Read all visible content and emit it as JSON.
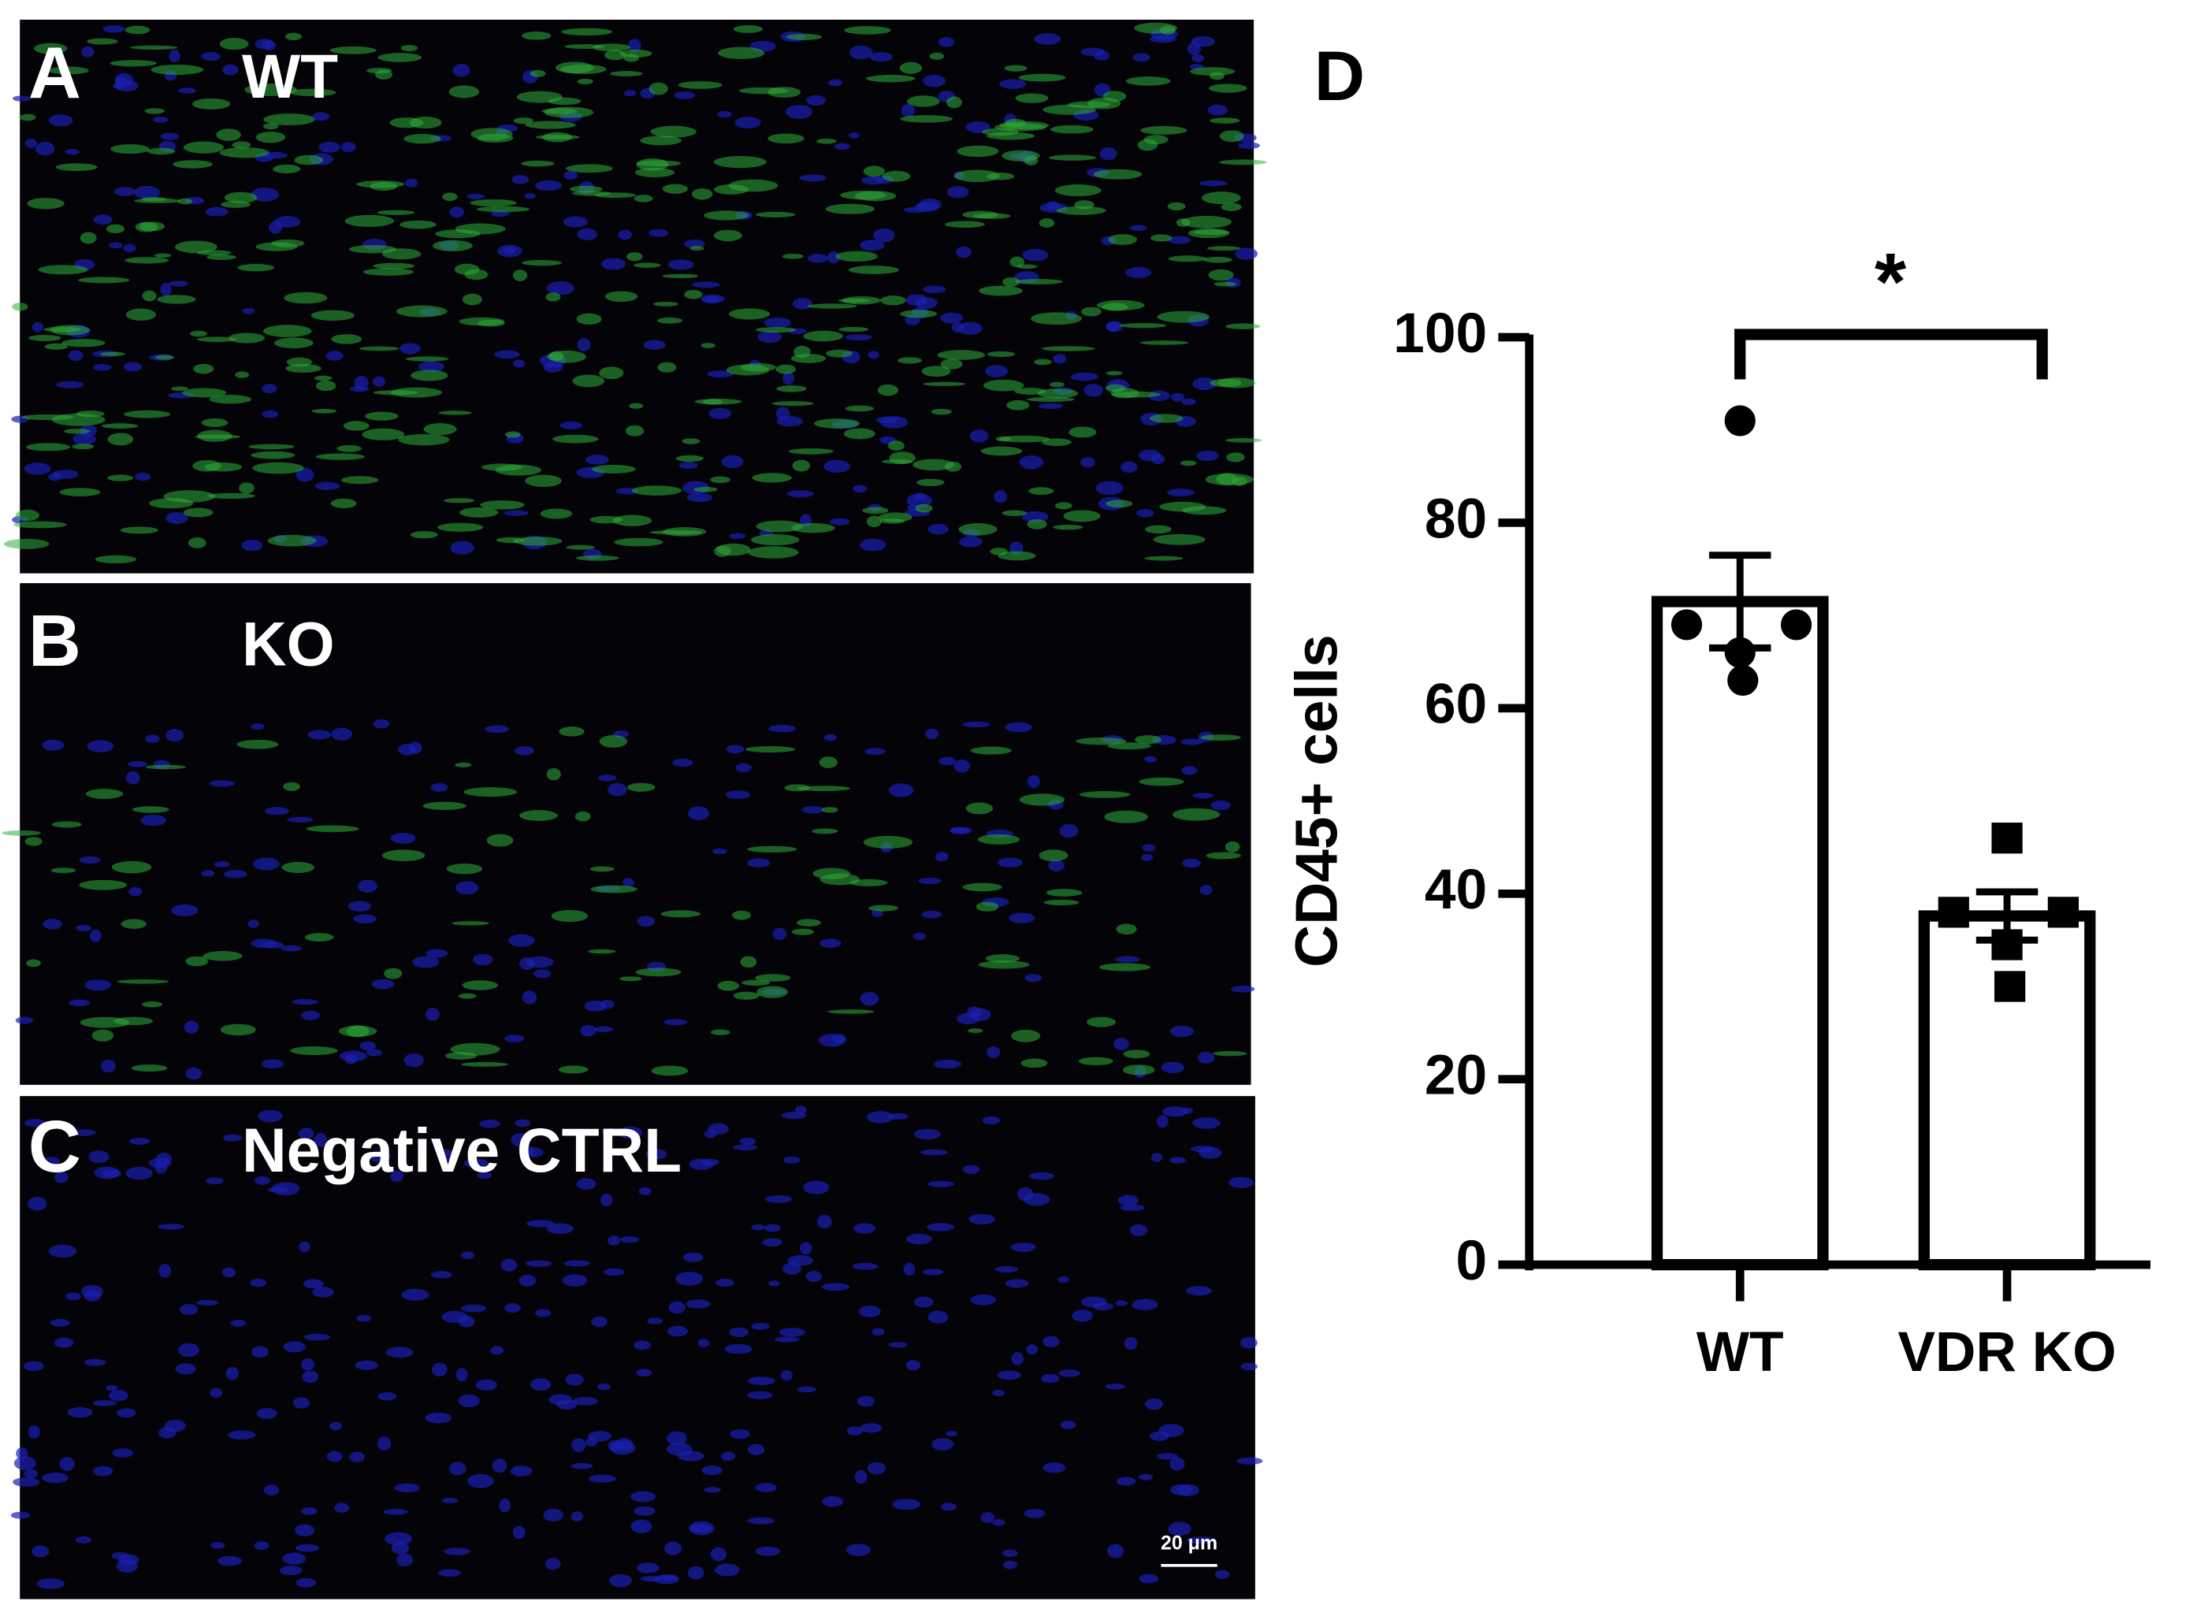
{
  "panels": [
    {
      "label": "A",
      "caption": "WT"
    },
    {
      "label": "B",
      "caption": "KO"
    },
    {
      "label": "C",
      "caption": "Negative CTRL"
    }
  ],
  "scale_bar": "20 μm",
  "chart_data": {
    "type": "bar",
    "panel_label": "D",
    "y_label": "CD45+ cells",
    "categories": [
      "WT",
      "VDR KO"
    ],
    "values": [
      71.5,
      37.6
    ],
    "errors": [
      5,
      2.6
    ],
    "points": [
      [
        91,
        69,
        69,
        66,
        63
      ],
      [
        46,
        38,
        38,
        34.5,
        30
      ]
    ],
    "annotation": "*",
    "color": "#000000",
    "ylim": [
      0,
      100
    ],
    "yticks": [
      0,
      20,
      40,
      60,
      80,
      100
    ]
  }
}
